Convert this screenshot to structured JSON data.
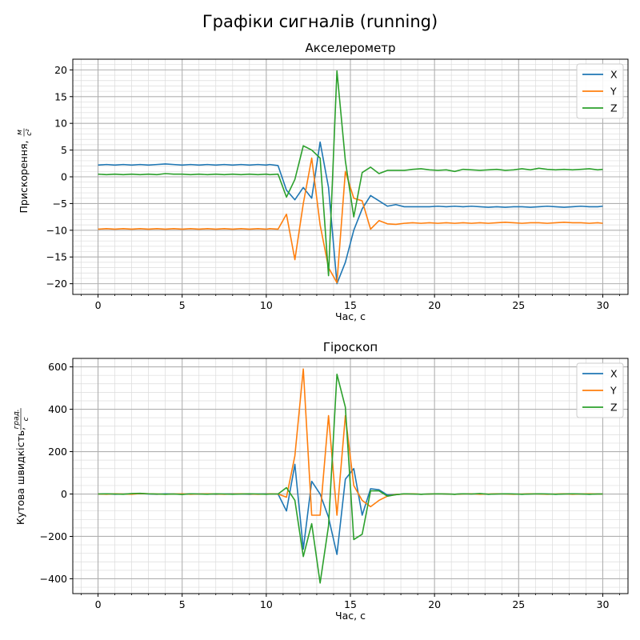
{
  "suptitle": "Графіки сигналів (running)",
  "chart_data": [
    {
      "type": "line",
      "title": "Акселерометр",
      "xlabel": "Час, с",
      "ylabel_main": "Прискорення, ",
      "ylabel_unit_num": "м",
      "ylabel_unit_den": "с²",
      "xlim": [
        -1.5,
        31.5
      ],
      "ylim": [
        -22,
        22
      ],
      "xticks": [
        0,
        5,
        10,
        15,
        20,
        25,
        30
      ],
      "yticks": [
        -20,
        -15,
        -10,
        -5,
        0,
        5,
        10,
        15,
        20
      ],
      "grid": true,
      "legend": "top-right",
      "x": [
        0,
        0.5,
        1,
        1.5,
        2,
        2.5,
        3,
        3.5,
        4,
        4.5,
        5,
        5.5,
        6,
        6.5,
        7,
        7.5,
        8,
        8.5,
        9,
        9.5,
        10,
        10.2,
        10.7,
        11.2,
        11.7,
        12.2,
        12.7,
        13.2,
        13.7,
        14.2,
        14.7,
        15.2,
        15.7,
        16.2,
        16.7,
        17.2,
        17.7,
        18.2,
        18.7,
        19.2,
        19.7,
        20.2,
        20.7,
        21.2,
        21.7,
        22.2,
        22.7,
        23.2,
        23.7,
        24.2,
        24.7,
        25.2,
        25.7,
        26.2,
        26.7,
        27.2,
        27.7,
        28.2,
        28.7,
        29.2,
        29.7,
        30
      ],
      "series": [
        {
          "name": "X",
          "color": "#1f77b4",
          "values": [
            2.2,
            2.3,
            2.2,
            2.3,
            2.2,
            2.3,
            2.2,
            2.3,
            2.4,
            2.3,
            2.2,
            2.3,
            2.2,
            2.3,
            2.2,
            2.3,
            2.2,
            2.3,
            2.2,
            2.3,
            2.2,
            2.3,
            2.1,
            -2.5,
            -4.3,
            -2.0,
            -4.0,
            6.5,
            -2.0,
            -20.0,
            -16.0,
            -10.0,
            -6.0,
            -3.5,
            -4.5,
            -5.5,
            -5.2,
            -5.6,
            -5.6,
            -5.6,
            -5.6,
            -5.5,
            -5.6,
            -5.5,
            -5.6,
            -5.5,
            -5.6,
            -5.7,
            -5.6,
            -5.7,
            -5.6,
            -5.6,
            -5.7,
            -5.6,
            -5.5,
            -5.6,
            -5.7,
            -5.6,
            -5.5,
            -5.6,
            -5.6,
            -5.5
          ]
        },
        {
          "name": "Y",
          "color": "#ff7f0e",
          "values": [
            -9.8,
            -9.7,
            -9.8,
            -9.7,
            -9.8,
            -9.7,
            -9.8,
            -9.7,
            -9.8,
            -9.7,
            -9.8,
            -9.7,
            -9.8,
            -9.7,
            -9.8,
            -9.7,
            -9.8,
            -9.7,
            -9.8,
            -9.7,
            -9.8,
            -9.7,
            -9.8,
            -7.0,
            -15.5,
            -5.0,
            3.5,
            -9.0,
            -17.0,
            -19.8,
            1.0,
            -4.0,
            -4.5,
            -9.8,
            -8.2,
            -8.8,
            -8.9,
            -8.7,
            -8.6,
            -8.7,
            -8.6,
            -8.7,
            -8.6,
            -8.7,
            -8.6,
            -8.7,
            -8.6,
            -8.7,
            -8.6,
            -8.5,
            -8.6,
            -8.7,
            -8.6,
            -8.6,
            -8.7,
            -8.6,
            -8.5,
            -8.6,
            -8.6,
            -8.7,
            -8.6,
            -8.7
          ]
        },
        {
          "name": "Z",
          "color": "#2ca02c",
          "values": [
            0.5,
            0.4,
            0.5,
            0.4,
            0.5,
            0.4,
            0.5,
            0.4,
            0.6,
            0.5,
            0.5,
            0.4,
            0.5,
            0.4,
            0.5,
            0.4,
            0.5,
            0.4,
            0.5,
            0.4,
            0.5,
            0.4,
            0.5,
            -3.8,
            -0.5,
            5.8,
            5.0,
            3.5,
            -18.5,
            19.8,
            3.0,
            -7.5,
            0.8,
            1.8,
            0.6,
            1.2,
            1.2,
            1.2,
            1.4,
            1.5,
            1.3,
            1.2,
            1.3,
            1.0,
            1.4,
            1.3,
            1.2,
            1.3,
            1.4,
            1.2,
            1.3,
            1.5,
            1.3,
            1.6,
            1.4,
            1.3,
            1.4,
            1.3,
            1.4,
            1.5,
            1.3,
            1.4
          ]
        }
      ]
    },
    {
      "type": "line",
      "title": "Гіроскоп",
      "xlabel": "Час, с",
      "ylabel_main": "Кутова швидкість, ",
      "ylabel_unit_num": "град.",
      "ylabel_unit_den": "с",
      "xlim": [
        -1.5,
        31.5
      ],
      "ylim": [
        -470,
        640
      ],
      "xticks": [
        0,
        5,
        10,
        15,
        20,
        25,
        30
      ],
      "yticks": [
        -400,
        -200,
        0,
        200,
        400,
        600
      ],
      "grid": true,
      "legend": "top-right",
      "x": [
        0,
        0.5,
        1,
        1.5,
        2,
        2.5,
        3,
        3.5,
        4,
        4.5,
        5,
        5.5,
        6,
        6.5,
        7,
        7.5,
        8,
        8.5,
        9,
        9.5,
        10,
        10.2,
        10.7,
        11.2,
        11.7,
        12.2,
        12.7,
        13.2,
        13.7,
        14.2,
        14.7,
        15.2,
        15.7,
        16.2,
        16.7,
        17.2,
        17.7,
        18.2,
        18.7,
        19.2,
        19.7,
        20.2,
        20.7,
        21.2,
        21.7,
        22.2,
        22.7,
        23.2,
        23.7,
        24.2,
        24.7,
        25.2,
        25.7,
        26.2,
        26.7,
        27.2,
        27.7,
        28.2,
        28.7,
        29.2,
        29.7,
        30
      ],
      "series": [
        {
          "name": "X",
          "color": "#1f77b4",
          "values": [
            0,
            1,
            -1,
            0,
            1,
            2,
            0,
            -1,
            1,
            0,
            -1,
            1,
            0,
            1,
            -1,
            0,
            1,
            0,
            -1,
            0,
            1,
            0,
            0,
            -80,
            140,
            -260,
            60,
            0,
            -110,
            -285,
            70,
            120,
            -100,
            25,
            20,
            -5,
            -3,
            1,
            0,
            -1,
            0,
            1,
            0,
            -1,
            1,
            0,
            1,
            -1,
            0,
            1,
            0,
            -1,
            0,
            1,
            0,
            -1,
            0,
            1,
            0,
            -1,
            0,
            0
          ]
        },
        {
          "name": "Y",
          "color": "#ff7f0e",
          "values": [
            0,
            -1,
            1,
            0,
            -1,
            2,
            1,
            0,
            -1,
            0,
            1,
            -1,
            0,
            1,
            0,
            -1,
            0,
            1,
            0,
            -1,
            0,
            1,
            0,
            -15,
            180,
            590,
            -100,
            -100,
            370,
            -100,
            370,
            40,
            -30,
            -60,
            -30,
            -10,
            -2,
            0,
            1,
            -1,
            0,
            1,
            0,
            -1,
            0,
            1,
            -1,
            0,
            1,
            0,
            -1,
            0,
            1,
            0,
            -1,
            0,
            1,
            -1,
            0,
            1,
            0,
            0
          ]
        },
        {
          "name": "Z",
          "color": "#2ca02c",
          "values": [
            0,
            1,
            0,
            -1,
            2,
            3,
            1,
            0,
            -1,
            0,
            -2,
            1,
            0,
            -1,
            1,
            0,
            -1,
            0,
            1,
            0,
            -1,
            0,
            0,
            30,
            -30,
            -295,
            -140,
            -420,
            -150,
            565,
            410,
            -215,
            -190,
            15,
            15,
            -10,
            -3,
            1,
            0,
            -1,
            0,
            1,
            0,
            -1,
            1,
            0,
            2,
            -1,
            0,
            1,
            0,
            -1,
            0,
            1,
            0,
            -1,
            0,
            1,
            0,
            -1,
            0,
            0
          ]
        }
      ]
    }
  ]
}
